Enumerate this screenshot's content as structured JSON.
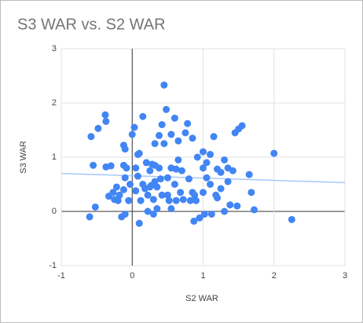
{
  "chart_data": {
    "type": "scatter",
    "title": "S3 WAR vs. S2 WAR",
    "x_label": "S2 WAR",
    "y_label": "S3 WAR",
    "xlim": [
      -1,
      3
    ],
    "xticks": [
      -1,
      0,
      1,
      2,
      3
    ],
    "ylim": [
      -1,
      3
    ],
    "yticks": [
      -1,
      0,
      1,
      2,
      3
    ],
    "grid": true,
    "series": [
      {
        "name": "S3 WAR",
        "color": "#4285f4",
        "x": [
          -0.6,
          -0.52,
          -0.55,
          -0.58,
          -0.48,
          -0.38,
          -0.37,
          -0.37,
          -0.3,
          -0.33,
          -0.27,
          -0.25,
          -0.22,
          -0.18,
          -0.2,
          -0.12,
          -0.1,
          -0.12,
          -0.08,
          -0.1,
          -0.12,
          -0.15,
          -0.1,
          -0.05,
          -0.03,
          0,
          0.03,
          0.05,
          0.05,
          0.08,
          0.08,
          0.1,
          0.1,
          0.12,
          0.15,
          0.15,
          0.18,
          0.2,
          0.22,
          0.22,
          0.25,
          0.25,
          0.27,
          0.28,
          0.3,
          0.3,
          0.32,
          0.32,
          0.32,
          0.35,
          0.35,
          0.38,
          0.38,
          0.4,
          0.42,
          0.42,
          0.45,
          0.45,
          0.48,
          0.5,
          0.5,
          0.52,
          0.55,
          0.55,
          0.55,
          0.6,
          0.6,
          0.62,
          0.62,
          0.65,
          0.65,
          0.68,
          0.7,
          0.72,
          0.75,
          0.78,
          0.8,
          0.82,
          0.85,
          0.85,
          0.87,
          0.88,
          0.9,
          0.92,
          0.95,
          1.0,
          1.0,
          1.0,
          1.02,
          1.05,
          1.05,
          1.1,
          1.1,
          1.12,
          1.15,
          1.18,
          1.2,
          1.2,
          1.25,
          1.25,
          1.3,
          1.3,
          1.35,
          1.35,
          1.38,
          1.42,
          1.45,
          1.48,
          1.5,
          1.55,
          1.65,
          1.68,
          1.72,
          2.0,
          2.25
        ],
        "values": [
          -0.1,
          0.08,
          0.85,
          1.38,
          1.53,
          1.78,
          1.66,
          0.82,
          0.84,
          0.28,
          0.35,
          0.22,
          0.45,
          0.3,
          0.2,
          1.22,
          1.15,
          0.85,
          0.8,
          0.62,
          0.4,
          -0.1,
          -0.05,
          0.2,
          0.5,
          1.42,
          1.55,
          0.8,
          0.38,
          1.05,
          0.65,
          1.07,
          -0.22,
          0.2,
          0.5,
          1.75,
          0.42,
          0.9,
          0,
          0.3,
          0.45,
          0.75,
          0.48,
          0.87,
          -0.05,
          0.22,
          0.55,
          0.85,
          1.25,
          0.05,
          0.45,
          0.8,
          1.4,
          0.6,
          0.3,
          1.6,
          2.33,
          1.25,
          1.88,
          0.62,
          0.3,
          0.2,
          0.05,
          0.8,
          1.42,
          1.72,
          0.5,
          0.2,
          0.78,
          1.3,
          0.95,
          0.35,
          0.75,
          0.22,
          1.45,
          1.62,
          0.6,
          0.2,
          0.35,
          1.35,
          -0.18,
          0.3,
          0.2,
          1.0,
          -0.12,
          0.35,
          0.8,
          1.1,
          -0.05,
          0.62,
          0.9,
          0.5,
          1.05,
          -0.05,
          1.38,
          0.3,
          0.78,
          0.25,
          0.42,
          0.72,
          0.95,
          0,
          0.8,
          0.55,
          0.12,
          0.75,
          1.45,
          0.1,
          1.52,
          1.58,
          0.68,
          0.35,
          0.03,
          1.07,
          -0.15
        ]
      }
    ],
    "trendline": {
      "color": "#a8c7fa",
      "x": [
        -1,
        3
      ],
      "values": [
        0.7,
        0.53
      ]
    }
  }
}
